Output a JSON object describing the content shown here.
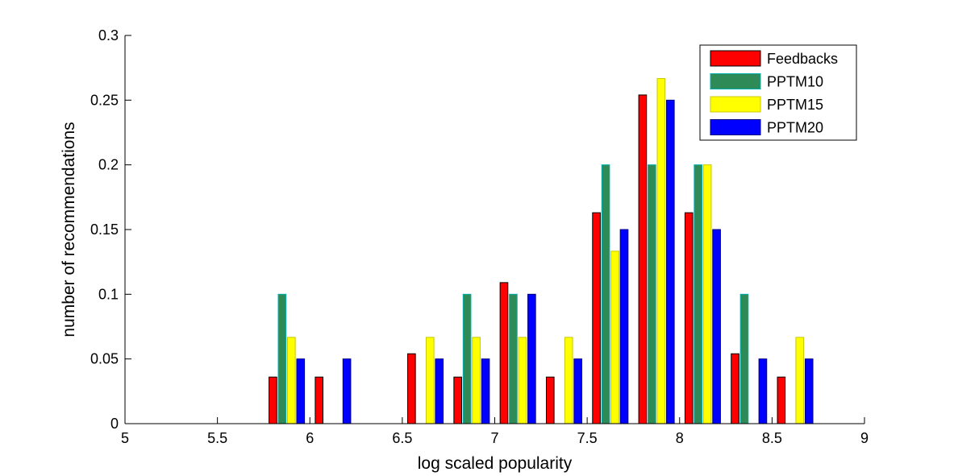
{
  "chart_data": {
    "type": "bar",
    "xlabel": "log scaled popularity",
    "ylabel": "number of recommendations",
    "xlim": [
      5,
      9
    ],
    "ylim": [
      0,
      0.3
    ],
    "xticks": [
      "5",
      "5.5",
      "6",
      "6.5",
      "7",
      "7.5",
      "8",
      "8.5",
      "9"
    ],
    "yticks": [
      "0",
      "0.05",
      "0.1",
      "0.15",
      "0.2",
      "0.25",
      "0.3"
    ],
    "legend_position": "top-right",
    "bin_centers": [
      5.125,
      5.375,
      5.625,
      5.875,
      6.125,
      6.375,
      6.625,
      6.875,
      7.125,
      7.375,
      7.625,
      7.875,
      8.125,
      8.375,
      8.625,
      8.875
    ],
    "series": [
      {
        "name": "Feedbacks",
        "color": "#ff0000",
        "edge": "#000000",
        "values": [
          0,
          0,
          0,
          0.036,
          0.036,
          0,
          0.054,
          0.036,
          0.109,
          0.036,
          0.163,
          0.254,
          0.163,
          0.054,
          0.036,
          0
        ]
      },
      {
        "name": "PPTM10",
        "color": "#2e8b57",
        "edge": "#00b0b0",
        "values": [
          0,
          0,
          0,
          0.1,
          0,
          0,
          0,
          0.1,
          0.1,
          0,
          0.2,
          0.2,
          0.2,
          0.1,
          0,
          0
        ]
      },
      {
        "name": "PPTM15",
        "color": "#ffff00",
        "edge": "#c8c800",
        "values": [
          0,
          0,
          0,
          0.0667,
          0,
          0,
          0.0667,
          0.0667,
          0.0667,
          0.0667,
          0.1333,
          0.2667,
          0.2,
          0,
          0.0667,
          0
        ]
      },
      {
        "name": "PPTM20",
        "color": "#0000ff",
        "edge": "#000080",
        "values": [
          0,
          0,
          0,
          0.05,
          0.05,
          0,
          0.05,
          0.05,
          0.1,
          0.05,
          0.15,
          0.25,
          0.15,
          0.05,
          0.05,
          0
        ]
      }
    ]
  }
}
